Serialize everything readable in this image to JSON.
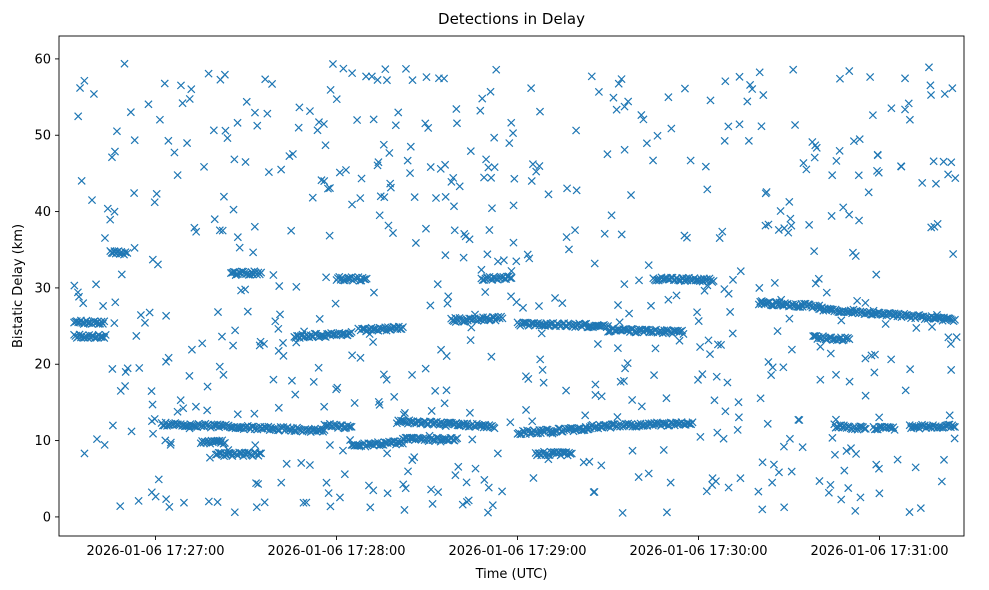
{
  "chart_data": {
    "type": "scatter",
    "title": "Detections in Delay",
    "xlabel": "Time (UTC)",
    "ylabel": "Bistatic Delay (km)",
    "marker": "x",
    "color": "#1f77b4",
    "grid": false,
    "legend": "none",
    "xlim": [
      "2026-01-06 17:26:28",
      "2026-01-06 17:31:28"
    ],
    "ylim": [
      -2.5,
      63
    ],
    "x_ticks": [
      "2026-01-06 17:27:00",
      "2026-01-06 17:28:00",
      "2026-01-06 17:29:00",
      "2026-01-06 17:30:00",
      "2026-01-06 17:31:00"
    ],
    "y_ticks": [
      0,
      10,
      20,
      30,
      40,
      50,
      60
    ],
    "tracks": [
      {
        "x": [
          "2026-01-06 17:26:33",
          "2026-01-06 17:26:43"
        ],
        "y": [
          25.5,
          25.5
        ]
      },
      {
        "x": [
          "2026-01-06 17:26:33",
          "2026-01-06 17:26:43"
        ],
        "y": [
          23.7,
          23.6
        ]
      },
      {
        "x": [
          "2026-01-06 17:26:45",
          "2026-01-06 17:26:50"
        ],
        "y": [
          34.8,
          34.5
        ]
      },
      {
        "x": [
          "2026-01-06 17:27:02",
          "2026-01-06 17:27:56"
        ],
        "y": [
          12.2,
          11.3
        ]
      },
      {
        "x": [
          "2026-01-06 17:27:15",
          "2026-01-06 17:27:23"
        ],
        "y": [
          9.8,
          9.8
        ]
      },
      {
        "x": [
          "2026-01-06 17:27:20",
          "2026-01-06 17:27:35"
        ],
        "y": [
          8.2,
          8.2
        ]
      },
      {
        "x": [
          "2026-01-06 17:27:25",
          "2026-01-06 17:27:35"
        ],
        "y": [
          32.0,
          31.9
        ]
      },
      {
        "x": [
          "2026-01-06 17:27:46",
          "2026-01-06 17:28:05"
        ],
        "y": [
          23.6,
          24.0
        ]
      },
      {
        "x": [
          "2026-01-06 17:27:56",
          "2026-01-06 17:28:05"
        ],
        "y": [
          12.0,
          11.8
        ]
      },
      {
        "x": [
          "2026-01-06 17:28:00",
          "2026-01-06 17:28:10"
        ],
        "y": [
          31.2,
          31.2
        ]
      },
      {
        "x": [
          "2026-01-06 17:28:08",
          "2026-01-06 17:28:22"
        ],
        "y": [
          24.5,
          24.7
        ]
      },
      {
        "x": [
          "2026-01-06 17:28:05",
          "2026-01-06 17:28:22"
        ],
        "y": [
          9.3,
          9.8
        ]
      },
      {
        "x": [
          "2026-01-06 17:28:20",
          "2026-01-06 17:28:52"
        ],
        "y": [
          12.5,
          11.9
        ]
      },
      {
        "x": [
          "2026-01-06 17:28:22",
          "2026-01-06 17:28:40"
        ],
        "y": [
          10.2,
          10.1
        ]
      },
      {
        "x": [
          "2026-01-06 17:28:38",
          "2026-01-06 17:28:55"
        ],
        "y": [
          25.8,
          26.0
        ]
      },
      {
        "x": [
          "2026-01-06 17:28:48",
          "2026-01-06 17:28:58"
        ],
        "y": [
          31.2,
          31.3
        ]
      },
      {
        "x": [
          "2026-01-06 17:29:00",
          "2026-01-06 17:29:24"
        ],
        "y": [
          11.0,
          11.6
        ]
      },
      {
        "x": [
          "2026-01-06 17:29:00",
          "2026-01-06 17:29:30"
        ],
        "y": [
          25.3,
          25.0
        ]
      },
      {
        "x": [
          "2026-01-06 17:29:06",
          "2026-01-06 17:29:18"
        ],
        "y": [
          8.3,
          8.3
        ]
      },
      {
        "x": [
          "2026-01-06 17:29:24",
          "2026-01-06 17:29:58"
        ],
        "y": [
          11.8,
          12.3
        ]
      },
      {
        "x": [
          "2026-01-06 17:29:30",
          "2026-01-06 17:29:55"
        ],
        "y": [
          24.5,
          24.2
        ]
      },
      {
        "x": [
          "2026-01-06 17:29:45",
          "2026-01-06 17:30:05"
        ],
        "y": [
          31.2,
          31.0
        ]
      },
      {
        "x": [
          "2026-01-06 17:30:20",
          "2026-01-06 17:30:40"
        ],
        "y": [
          28.0,
          27.6
        ]
      },
      {
        "x": [
          "2026-01-06 17:30:38",
          "2026-01-06 17:30:50"
        ],
        "y": [
          23.5,
          23.3
        ]
      },
      {
        "x": [
          "2026-01-06 17:30:40",
          "2026-01-06 17:31:25"
        ],
        "y": [
          27.3,
          25.8
        ]
      },
      {
        "x": [
          "2026-01-06 17:30:45",
          "2026-01-06 17:30:55"
        ],
        "y": [
          11.9,
          11.6
        ]
      },
      {
        "x": [
          "2026-01-06 17:30:58",
          "2026-01-06 17:31:05"
        ],
        "y": [
          11.7,
          11.6
        ]
      },
      {
        "x": [
          "2026-01-06 17:31:10",
          "2026-01-06 17:31:25"
        ],
        "y": [
          11.8,
          11.9
        ]
      }
    ],
    "clutter_points": 650
  }
}
